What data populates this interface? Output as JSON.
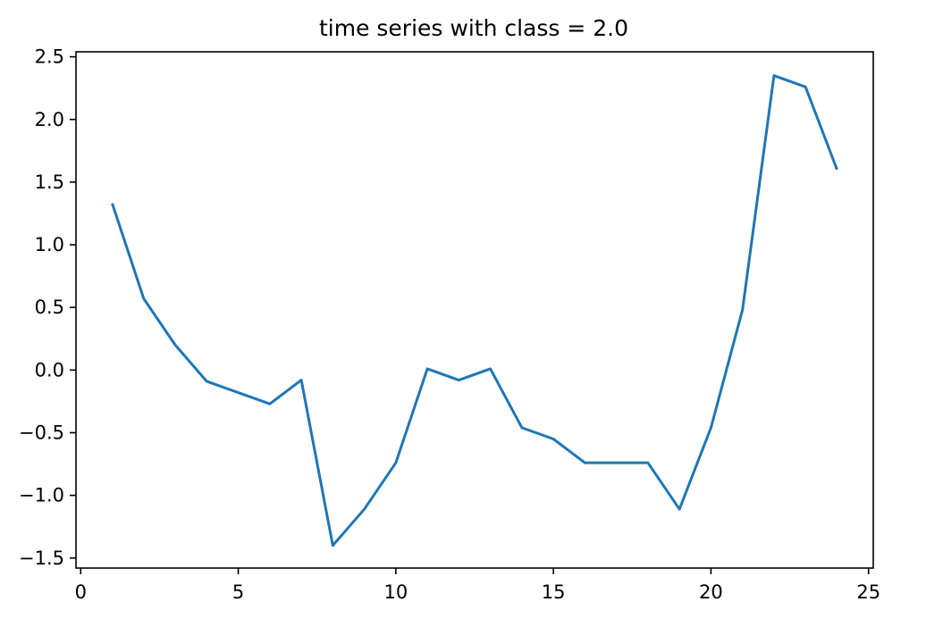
{
  "chart_data": {
    "type": "line",
    "title": "time series with class = 2.0",
    "xlabel": "",
    "ylabel": "",
    "xlim": [
      -0.15,
      25.15
    ],
    "ylim": [
      -1.58,
      2.54
    ],
    "xticks": [
      0,
      5,
      10,
      15,
      20,
      25
    ],
    "xtick_labels": [
      "0",
      "5",
      "10",
      "15",
      "20",
      "25"
    ],
    "yticks": [
      -1.5,
      -1.0,
      -0.5,
      0.0,
      0.5,
      1.0,
      1.5,
      2.0,
      2.5
    ],
    "ytick_labels": [
      "−1.5",
      "−1.0",
      "−0.5",
      "0.0",
      "0.5",
      "1.0",
      "1.5",
      "2.0",
      "2.5"
    ],
    "grid": false,
    "legend": "none",
    "series": [
      {
        "color": "#1f77b4",
        "x": [
          1,
          2,
          3,
          4,
          5,
          6,
          7,
          8,
          9,
          10,
          11,
          12,
          13,
          14,
          15,
          16,
          17,
          18,
          19,
          20,
          21,
          22,
          23,
          24
        ],
        "y": [
          1.33,
          0.57,
          0.2,
          -0.09,
          -0.18,
          -0.27,
          -0.08,
          -1.4,
          -1.11,
          -0.74,
          0.01,
          -0.08,
          0.01,
          -0.46,
          -0.55,
          -0.74,
          -0.74,
          -0.74,
          -1.11,
          -0.46,
          0.48,
          2.35,
          2.26,
          1.6
        ]
      }
    ]
  }
}
